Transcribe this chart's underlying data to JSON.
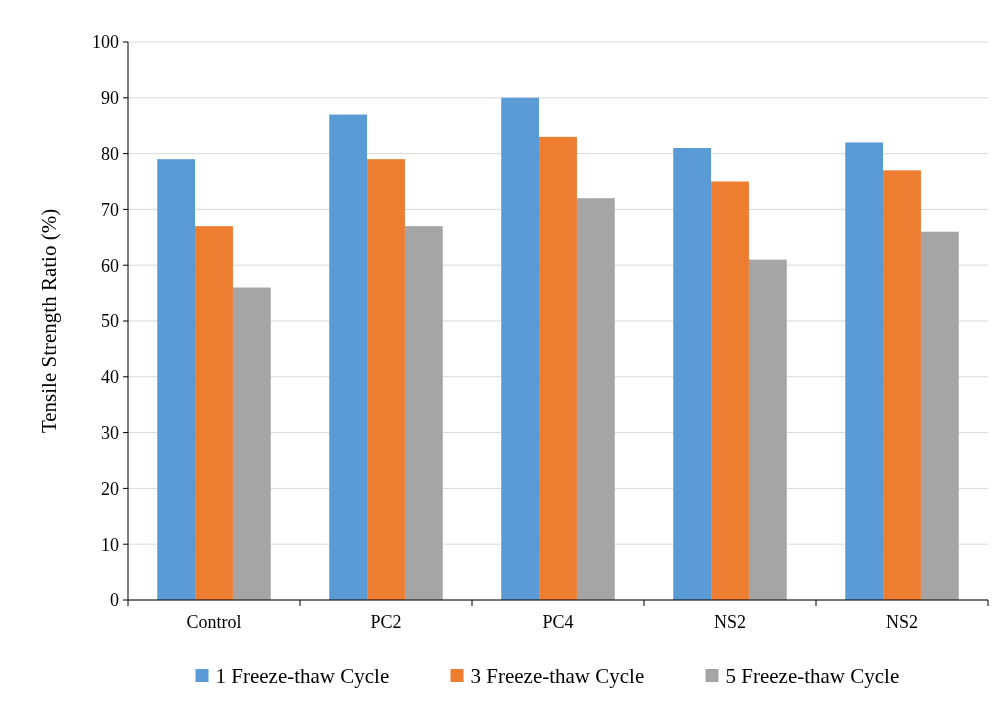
{
  "chart_data": {
    "type": "bar",
    "ylabel": "Tensile Strength Ratio (%)",
    "categories": [
      "Control",
      "PC2",
      "PC4",
      "NS2",
      "NS2"
    ],
    "series": [
      {
        "name": "1 Freeze-thaw Cycle",
        "color": "#5b9bd5",
        "values": [
          79,
          87,
          90,
          81,
          82
        ]
      },
      {
        "name": "3 Freeze-thaw Cycle",
        "color": "#ed7d31",
        "values": [
          67,
          79,
          83,
          75,
          77
        ]
      },
      {
        "name": "5 Freeze-thaw Cycle",
        "color": "#a5a5a5",
        "values": [
          56,
          67,
          72,
          61,
          66
        ]
      }
    ],
    "ylim": [
      0,
      100
    ],
    "yticks": [
      0,
      10,
      20,
      30,
      40,
      50,
      60,
      70,
      80,
      90,
      100
    ],
    "grid": "y",
    "legend": "bottom"
  }
}
